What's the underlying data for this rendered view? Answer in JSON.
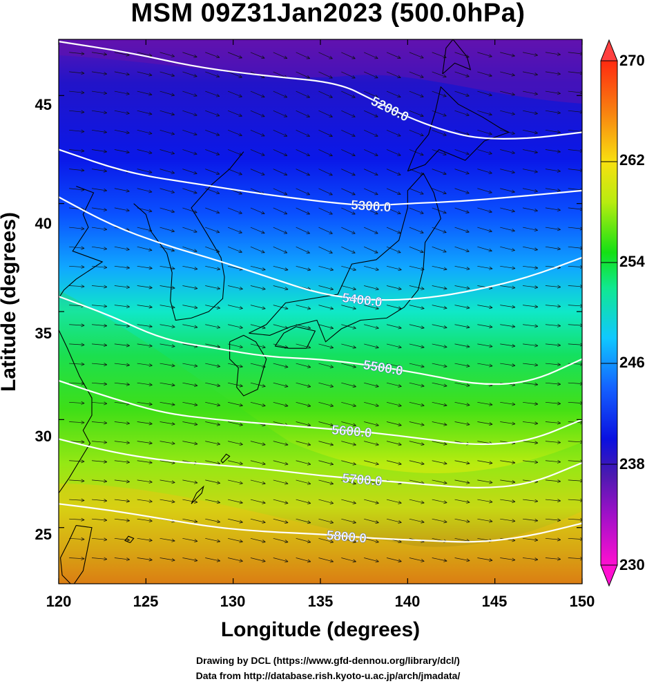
{
  "title": "MSM 09Z31Jan2023 (500.0hPa)",
  "axes": {
    "xlabel": "Longitude (degrees)",
    "ylabel": "Latitude  (degrees)",
    "x_ticks": [
      "120",
      "125",
      "130",
      "135",
      "140",
      "145",
      "150"
    ],
    "y_ticks": [
      "45",
      "40",
      "35",
      "30",
      "25"
    ]
  },
  "colorbar": {
    "ticks": [
      "270",
      "262",
      "254",
      "246",
      "238",
      "230"
    ],
    "min": 230,
    "max": 270,
    "colors": [
      "#ff10d0",
      "#a010c8",
      "#4a1ab0",
      "#0a10e0",
      "#1460ff",
      "#10c8ff",
      "#10e890",
      "#14e014",
      "#b8ec10",
      "#f8e010",
      "#f88010",
      "#ff2a10"
    ]
  },
  "chart_data": {
    "type": "contour-map",
    "x_range": [
      120,
      150
    ],
    "y_range": [
      22.4,
      47.6
    ],
    "contour_labels": [
      "5200.0",
      "5300.0",
      "5400.0",
      "5500.0",
      "5600.0",
      "5700.0",
      "5800.0"
    ],
    "contours": [
      {
        "label": "5200.0",
        "points": [
          [
            120.0,
            47.5
          ],
          [
            124,
            47.0
          ],
          [
            128,
            46.3
          ],
          [
            132,
            45.9
          ],
          [
            136,
            45.6
          ],
          [
            138,
            44.8
          ],
          [
            140,
            44.0
          ],
          [
            142,
            43.4
          ],
          [
            144,
            43.0
          ],
          [
            147,
            43.0
          ],
          [
            150,
            43.3
          ]
        ]
      },
      {
        "label": "5300.0",
        "points": [
          [
            120.0,
            42.5
          ],
          [
            124,
            41.4
          ],
          [
            128,
            40.9
          ],
          [
            132,
            40.4
          ],
          [
            136,
            40.0
          ],
          [
            138,
            39.9
          ],
          [
            140,
            40.0
          ],
          [
            143,
            40.1
          ],
          [
            146,
            40.3
          ],
          [
            150,
            40.6
          ]
        ]
      },
      {
        "label": "5400.0",
        "points": [
          [
            120.0,
            40.3
          ],
          [
            123,
            39.0
          ],
          [
            126,
            38.1
          ],
          [
            129,
            37.4
          ],
          [
            132,
            36.6
          ],
          [
            135,
            35.8
          ],
          [
            138,
            35.5
          ],
          [
            141,
            35.6
          ],
          [
            144,
            36.0
          ],
          [
            147,
            36.6
          ],
          [
            150,
            37.5
          ]
        ]
      },
      {
        "label": "5500.0",
        "points": [
          [
            120.0,
            35.7
          ],
          [
            123,
            34.8
          ],
          [
            126,
            33.7
          ],
          [
            129,
            33.3
          ],
          [
            132,
            32.9
          ],
          [
            135,
            32.8
          ],
          [
            138,
            32.5
          ],
          [
            141,
            32.1
          ],
          [
            144,
            31.6
          ],
          [
            147,
            31.7
          ],
          [
            150,
            32.8
          ]
        ]
      },
      {
        "label": "5600.0",
        "points": [
          [
            120.0,
            31.8
          ],
          [
            123,
            31.0
          ],
          [
            126,
            30.3
          ],
          [
            129,
            30.0
          ],
          [
            132,
            29.8
          ],
          [
            135,
            29.6
          ],
          [
            138,
            29.4
          ],
          [
            141,
            29.1
          ],
          [
            144,
            28.8
          ],
          [
            147,
            29.0
          ],
          [
            150,
            30.0
          ]
        ]
      },
      {
        "label": "5700.0",
        "points": [
          [
            120.0,
            29.1
          ],
          [
            123,
            28.5
          ],
          [
            126,
            28.1
          ],
          [
            129,
            27.9
          ],
          [
            132,
            27.7
          ],
          [
            135,
            27.4
          ],
          [
            138,
            27.2
          ],
          [
            141,
            27.0
          ],
          [
            144,
            26.8
          ],
          [
            147,
            27.0
          ],
          [
            150,
            28.0
          ]
        ]
      },
      {
        "label": "5800.0",
        "points": [
          [
            120.0,
            26.1
          ],
          [
            123,
            25.8
          ],
          [
            126,
            25.4
          ],
          [
            129,
            25.0
          ],
          [
            132,
            24.8
          ],
          [
            135,
            24.7
          ],
          [
            138,
            24.5
          ],
          [
            141,
            24.4
          ],
          [
            144,
            24.3
          ],
          [
            147,
            24.6
          ],
          [
            150,
            25.2
          ]
        ]
      }
    ]
  },
  "credits": {
    "line1": "Drawing by DCL (https://www.gfd-dennou.org/library/dcl/)",
    "line2": "Data from http://database.rish.kyoto-u.ac.jp/arch/jmadata/"
  }
}
